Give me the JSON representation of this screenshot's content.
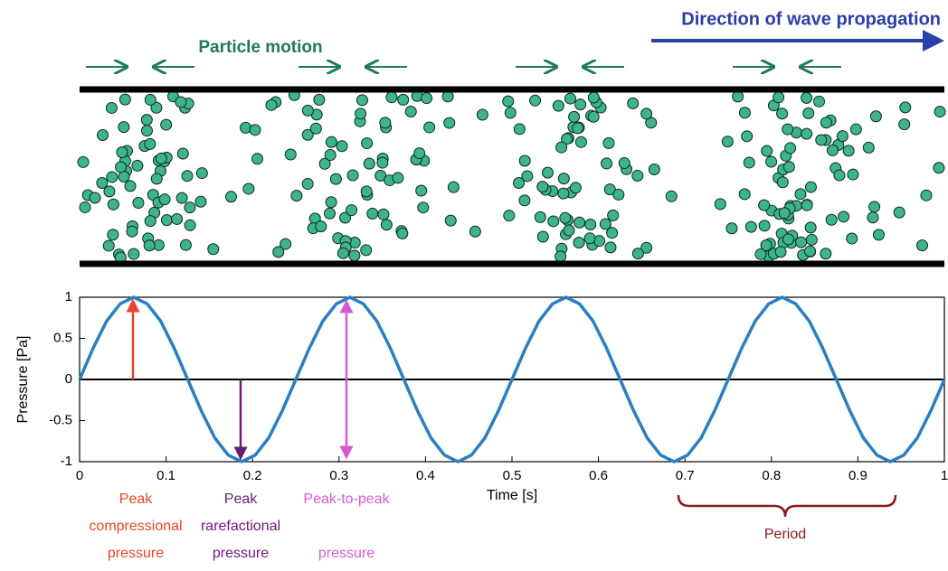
{
  "chart_data": {
    "type": "line",
    "xlabel": "Time [s]",
    "ylabel": "Pressure [Pa]",
    "x": [
      0,
      0.015625,
      0.03125,
      0.046875,
      0.0625,
      0.078125,
      0.09375,
      0.109375,
      0.125,
      0.140625,
      0.15625,
      0.171875,
      0.1875,
      0.203125,
      0.21875,
      0.234375,
      0.25,
      0.265625,
      0.28125,
      0.296875,
      0.3125,
      0.328125,
      0.34375,
      0.359375,
      0.375,
      0.390625,
      0.40625,
      0.421875,
      0.4375,
      0.453125,
      0.46875,
      0.484375,
      0.5,
      0.515625,
      0.53125,
      0.546875,
      0.5625,
      0.578125,
      0.59375,
      0.609375,
      0.625,
      0.640625,
      0.65625,
      0.671875,
      0.6875,
      0.703125,
      0.71875,
      0.734375,
      0.75,
      0.765625,
      0.78125,
      0.796875,
      0.8125,
      0.828125,
      0.84375,
      0.859375,
      0.875,
      0.890625,
      0.90625,
      0.921875,
      0.9375,
      0.953125,
      0.96875,
      0.984375,
      1
    ],
    "series": [
      {
        "color": "#2a7fc4",
        "values": [
          0,
          0.38,
          0.71,
          0.92,
          1,
          0.92,
          0.71,
          0.38,
          0,
          -0.38,
          -0.71,
          -0.92,
          -1,
          -0.92,
          -0.71,
          -0.38,
          0,
          0.38,
          0.71,
          0.92,
          1,
          0.92,
          0.71,
          0.38,
          0,
          -0.38,
          -0.71,
          -0.92,
          -1,
          -0.92,
          -0.71,
          -0.38,
          0,
          0.38,
          0.71,
          0.92,
          1,
          0.92,
          0.71,
          0.38,
          0,
          -0.38,
          -0.71,
          -0.92,
          -1,
          -0.92,
          -0.71,
          -0.38,
          0,
          0.38,
          0.71,
          0.92,
          1,
          0.92,
          0.71,
          0.38,
          0,
          -0.38,
          -0.71,
          -0.92,
          -1,
          -0.92,
          -0.71,
          -0.38,
          0
        ]
      }
    ],
    "xlim": [
      0,
      1
    ],
    "ylim": [
      -1,
      1
    ],
    "xticks": [
      0,
      0.1,
      0.2,
      0.3,
      0.4,
      0.5,
      0.6,
      0.7,
      0.8,
      0.9,
      1
    ],
    "yticks": [
      -1,
      -0.5,
      0,
      0.5,
      1
    ]
  },
  "annotations": {
    "particle_motion": "Particle motion",
    "propagation": "Direction of wave propagation",
    "peak_compressional": [
      "Peak",
      "compressional",
      "pressure"
    ],
    "peak_rarefactional": [
      "Peak",
      "rarefactional",
      "pressure"
    ],
    "peak_to_peak": [
      "Peak-to-peak",
      "pressure"
    ],
    "period": "Period"
  }
}
